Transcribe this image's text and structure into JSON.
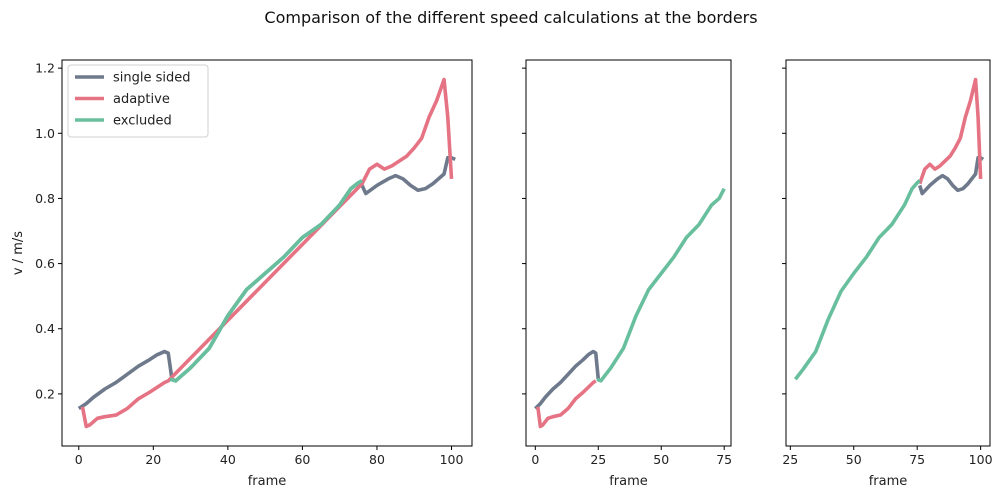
{
  "suptitle": "Comparison of the different speed calculations at the borders",
  "colors": {
    "single_sided": "#6e7a8c",
    "adaptive": "#e57384",
    "excluded": "#68bf9e"
  },
  "chart_data": [
    {
      "type": "line",
      "xlabel": "frame",
      "ylabel": "v / m/s",
      "xlim": [
        -4.5,
        105.5
      ],
      "ylim": [
        0.04,
        1.225
      ],
      "xticks": [
        0,
        20,
        40,
        60,
        80,
        100
      ],
      "yticks": [
        0.2,
        0.4,
        0.6,
        0.8,
        1.0,
        1.2
      ],
      "ytick_labels": [
        "0.2",
        "0.4",
        "0.6",
        "0.8",
        "1.0",
        "1.2"
      ],
      "legend": {
        "location": "top-left",
        "entries": [
          "single sided",
          "adaptive",
          "excluded"
        ]
      },
      "series": [
        {
          "name": "single sided",
          "color_key": "single_sided",
          "x": [
            0,
            2,
            4,
            7,
            10,
            13,
            16,
            19,
            21,
            23,
            24,
            25,
            26,
            30,
            35,
            40,
            45,
            50,
            55,
            60,
            65,
            70,
            73,
            75,
            76,
            77,
            80,
            83,
            85,
            87,
            89,
            91,
            93,
            95,
            97,
            98,
            99,
            100,
            101
          ],
          "y": [
            0.155,
            0.17,
            0.19,
            0.215,
            0.235,
            0.26,
            0.285,
            0.305,
            0.32,
            0.33,
            0.325,
            0.245,
            0.24,
            0.28,
            0.34,
            0.44,
            0.52,
            0.57,
            0.62,
            0.68,
            0.72,
            0.78,
            0.83,
            0.848,
            0.84,
            0.815,
            0.84,
            0.86,
            0.87,
            0.86,
            0.84,
            0.825,
            0.83,
            0.845,
            0.865,
            0.875,
            0.925,
            0.925,
            0.92
          ]
        },
        {
          "name": "adaptive",
          "color_key": "adaptive",
          "x": [
            1,
            2,
            3,
            5,
            7,
            10,
            13,
            16,
            19,
            21,
            23,
            24,
            76,
            78,
            80,
            82,
            84,
            86,
            88,
            90,
            92,
            94,
            96,
            98,
            99,
            100
          ],
          "y": [
            0.16,
            0.1,
            0.105,
            0.125,
            0.13,
            0.135,
            0.155,
            0.185,
            0.205,
            0.22,
            0.235,
            0.24,
            0.845,
            0.89,
            0.905,
            0.89,
            0.9,
            0.915,
            0.93,
            0.955,
            0.985,
            1.05,
            1.1,
            1.165,
            1.05,
            0.86
          ]
        },
        {
          "name": "excluded",
          "color_key": "excluded",
          "x": [
            24.5,
            26,
            30,
            35,
            40,
            45,
            50,
            55,
            60,
            65,
            70,
            73,
            75,
            76
          ],
          "y": [
            0.245,
            0.24,
            0.28,
            0.34,
            0.44,
            0.52,
            0.57,
            0.62,
            0.68,
            0.72,
            0.78,
            0.83,
            0.848,
            0.855
          ]
        }
      ]
    },
    {
      "type": "line",
      "xlabel": "frame",
      "ylabel": "",
      "xlim": [
        -3.7,
        77.7
      ],
      "ylim": [
        0.04,
        1.225
      ],
      "xticks": [
        0,
        25,
        50,
        75
      ],
      "yticks": [
        0.2,
        0.4,
        0.6,
        0.8,
        1.0,
        1.2
      ],
      "ytick_labels": [
        "",
        "",
        "",
        "",
        "",
        ""
      ],
      "series": [
        {
          "name": "single sided",
          "color_key": "single_sided",
          "x": [
            0,
            2,
            4,
            7,
            10,
            13,
            16,
            19,
            21,
            23,
            24,
            25
          ],
          "y": [
            0.155,
            0.17,
            0.19,
            0.215,
            0.235,
            0.26,
            0.285,
            0.305,
            0.32,
            0.33,
            0.325,
            0.245
          ]
        },
        {
          "name": "adaptive",
          "color_key": "adaptive",
          "x": [
            1,
            2,
            3,
            5,
            7,
            10,
            13,
            16,
            19,
            21,
            23,
            24
          ],
          "y": [
            0.16,
            0.1,
            0.105,
            0.125,
            0.13,
            0.135,
            0.155,
            0.185,
            0.205,
            0.22,
            0.235,
            0.24
          ]
        },
        {
          "name": "excluded",
          "color_key": "excluded",
          "x": [
            24.5,
            26,
            30,
            35,
            40,
            45,
            50,
            55,
            60,
            65,
            70,
            73,
            75
          ],
          "y": [
            0.245,
            0.24,
            0.28,
            0.34,
            0.44,
            0.52,
            0.57,
            0.62,
            0.68,
            0.72,
            0.78,
            0.8,
            0.83
          ]
        }
      ]
    },
    {
      "type": "line",
      "xlabel": "frame",
      "ylabel": "",
      "xlim": [
        23.3,
        103.7
      ],
      "ylim": [
        0.04,
        1.225
      ],
      "xticks": [
        25,
        50,
        75,
        100
      ],
      "yticks": [
        0.2,
        0.4,
        0.6,
        0.8,
        1.0,
        1.2
      ],
      "ytick_labels": [
        "",
        "",
        "",
        "",
        "",
        ""
      ],
      "series": [
        {
          "name": "single sided",
          "color_key": "single_sided",
          "x": [
            76,
            77,
            80,
            83,
            85,
            87,
            89,
            91,
            93,
            95,
            97,
            98,
            99,
            100,
            101
          ],
          "y": [
            0.84,
            0.815,
            0.84,
            0.86,
            0.87,
            0.86,
            0.84,
            0.825,
            0.83,
            0.845,
            0.865,
            0.875,
            0.925,
            0.925,
            0.92
          ]
        },
        {
          "name": "adaptive",
          "color_key": "adaptive",
          "x": [
            76,
            78,
            80,
            82,
            84,
            86,
            88,
            90,
            92,
            94,
            96,
            98,
            99,
            100
          ],
          "y": [
            0.845,
            0.89,
            0.905,
            0.89,
            0.9,
            0.915,
            0.93,
            0.955,
            0.985,
            1.05,
            1.1,
            1.165,
            1.05,
            0.86
          ]
        },
        {
          "name": "excluded",
          "color_key": "excluded",
          "x": [
            27,
            30,
            35,
            40,
            45,
            50,
            55,
            60,
            65,
            70,
            73,
            75,
            76
          ],
          "y": [
            0.245,
            0.275,
            0.33,
            0.43,
            0.515,
            0.57,
            0.62,
            0.68,
            0.72,
            0.78,
            0.83,
            0.848,
            0.855
          ]
        }
      ]
    }
  ]
}
